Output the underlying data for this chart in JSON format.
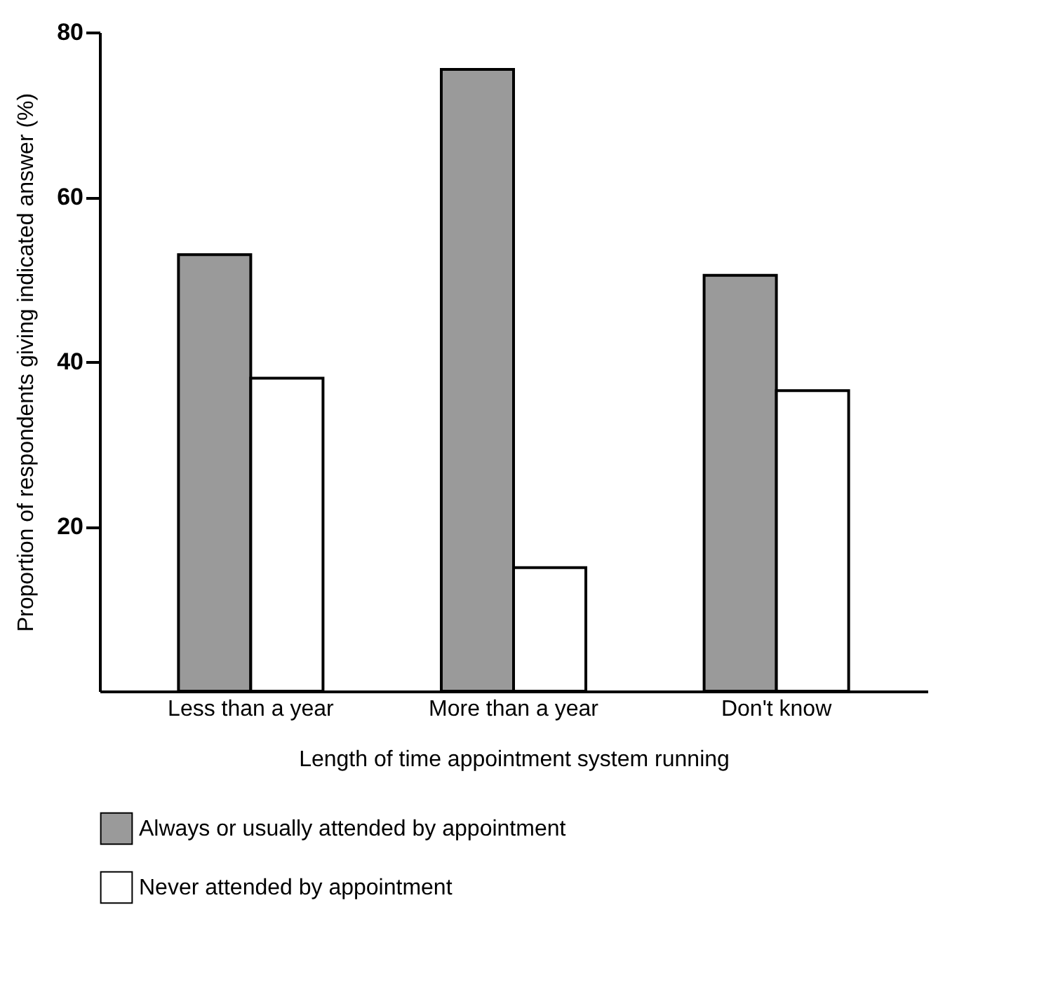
{
  "chart_data": {
    "type": "bar",
    "categories": [
      "Less than a year",
      "More than a year",
      "Don't know"
    ],
    "series": [
      {
        "name": "Always or usually attended by appointment",
        "color": "#9a9a9a",
        "values": [
          53,
          75.5,
          50.5
        ]
      },
      {
        "name": "Never attended by appointment",
        "color": "#ffffff",
        "values": [
          38,
          15,
          36.5
        ]
      }
    ],
    "xlabel": "Length of time appointment system running",
    "ylabel": "Proportion of respondents giving indicated answer (%)",
    "ylim": [
      0,
      80
    ],
    "yticks": [
      20,
      40,
      60,
      80
    ],
    "grid": false,
    "legend": "bottom"
  }
}
